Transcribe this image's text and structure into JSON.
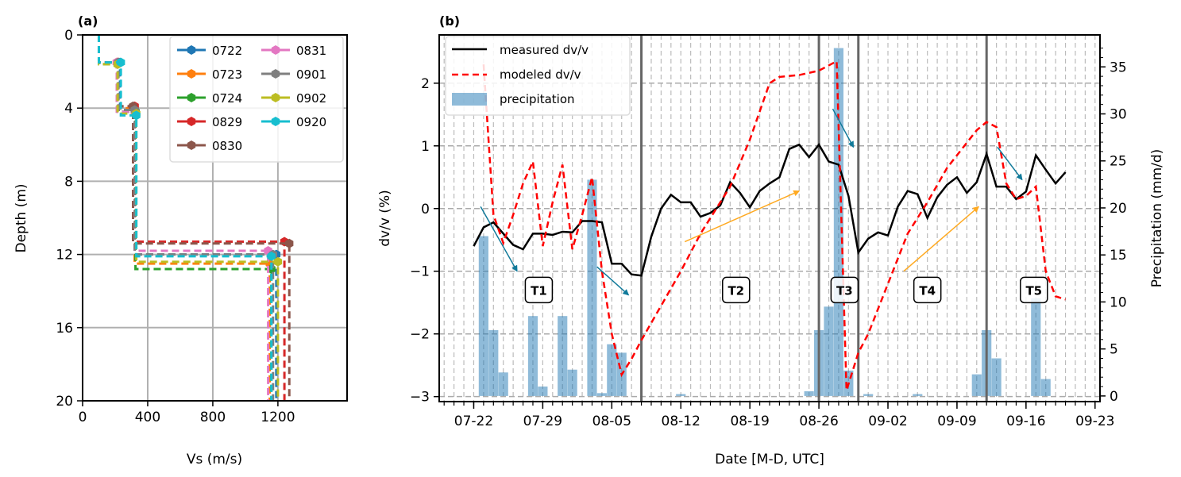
{
  "chart_data": [
    {
      "type": "line",
      "title": "(a)",
      "xlabel": "Vs (m/s)",
      "ylabel": "Depth (m)",
      "xlim": [
        0,
        1625
      ],
      "ylim": [
        20,
        0
      ],
      "xticks": [
        "0",
        "400",
        "800",
        "1200"
      ],
      "xtick_values": [
        0,
        400,
        800,
        1200
      ],
      "yticks": [
        "0",
        "4",
        "8",
        "12",
        "16",
        "20"
      ],
      "ytick_values": [
        0,
        4,
        8,
        12,
        16,
        20
      ],
      "grid": true,
      "legend_placement": "top-right",
      "series": [
        {
          "name": "0722",
          "color": "#1f77b4",
          "depths": [
            0,
            1.5,
            4.2,
            12.0
          ],
          "vs": [
            100,
            230,
            325,
            1190
          ]
        },
        {
          "name": "0723",
          "color": "#ff7f0e",
          "depths": [
            0,
            1.5,
            4.0,
            12.5
          ],
          "vs": [
            100,
            210,
            320,
            1150
          ]
        },
        {
          "name": "0724",
          "color": "#2ca02c",
          "depths": [
            0,
            1.6,
            4.2,
            12.8
          ],
          "vs": [
            100,
            215,
            325,
            1160
          ]
        },
        {
          "name": "0829",
          "color": "#d62728",
          "depths": [
            0,
            1.5,
            3.9,
            11.3
          ],
          "vs": [
            100,
            215,
            320,
            1240
          ]
        },
        {
          "name": "0830",
          "color": "#8c564b",
          "depths": [
            0,
            1.5,
            3.9,
            11.4
          ],
          "vs": [
            100,
            220,
            310,
            1270
          ]
        },
        {
          "name": "0831",
          "color": "#e377c2",
          "depths": [
            0,
            1.5,
            4.2,
            11.8
          ],
          "vs": [
            100,
            210,
            320,
            1140
          ]
        },
        {
          "name": "0901",
          "color": "#7f7f7f",
          "depths": [
            0,
            1.5,
            4.1,
            12.0
          ],
          "vs": [
            100,
            220,
            320,
            1170
          ]
        },
        {
          "name": "0902",
          "color": "#bcbd22",
          "depths": [
            0,
            1.6,
            4.3,
            12.4
          ],
          "vs": [
            100,
            215,
            330,
            1200
          ]
        },
        {
          "name": "0920",
          "color": "#17becf",
          "depths": [
            0,
            1.5,
            4.4,
            12.1
          ],
          "vs": [
            100,
            235,
            330,
            1160
          ]
        }
      ]
    },
    {
      "type": "line",
      "title": "(b)",
      "xlabel": "Date [M-D, UTC]",
      "ylabel": "dv/v (%)",
      "ylabel_right": "Precipitation (mm/d)",
      "x_unit": "days since 07-22",
      "xlim": [
        -3.5,
        63.5
      ],
      "ylim": [
        -3.08,
        2.77
      ],
      "ylim_right": [
        -0.6,
        38.4
      ],
      "xticks": [
        "07-22",
        "07-29",
        "08-05",
        "08-12",
        "08-19",
        "08-26",
        "09-02",
        "09-09",
        "09-16",
        "09-23"
      ],
      "xtick_values": [
        0,
        7,
        14,
        21,
        28,
        35,
        42,
        49,
        56,
        63
      ],
      "yticks": [
        "−3",
        "−2",
        "−1",
        "0",
        "1",
        "2"
      ],
      "ytick_values": [
        -3,
        -2,
        -1,
        0,
        1,
        2
      ],
      "yticks_right": [
        "0",
        "5",
        "10",
        "15",
        "20",
        "25",
        "30",
        "35"
      ],
      "ytick_values_right": [
        0,
        5,
        10,
        15,
        20,
        25,
        30,
        35
      ],
      "grid": true,
      "legend_placement": "top-left",
      "legend": [
        "measured dv/v",
        "modeled dv/v",
        "precipitation"
      ],
      "measured": {
        "color": "#000000",
        "x": [
          0,
          1,
          2,
          3,
          4,
          5,
          6,
          7,
          8,
          9,
          10,
          11,
          12,
          13,
          14,
          15,
          16,
          17,
          18,
          19,
          20,
          21,
          22,
          23,
          24,
          25,
          26,
          27,
          28,
          29,
          30,
          31,
          32,
          33,
          34,
          35,
          36,
          37,
          38,
          39,
          40,
          41,
          42,
          43,
          44,
          45,
          46,
          47,
          48,
          49,
          50,
          51,
          52,
          53,
          54,
          55,
          56,
          57,
          58,
          59,
          60
        ],
        "y": [
          -0.6,
          -0.3,
          -0.22,
          -0.4,
          -0.58,
          -0.65,
          -0.4,
          -0.4,
          -0.42,
          -0.37,
          -0.38,
          -0.2,
          -0.2,
          -0.22,
          -0.88,
          -0.88,
          -1.05,
          -1.07,
          -0.45,
          0,
          0.22,
          0.1,
          0.1,
          -0.13,
          -0.07,
          0.05,
          0.42,
          0.25,
          0.02,
          0.28,
          0.4,
          0.5,
          0.95,
          1.02,
          0.82,
          1.02,
          0.75,
          0.7,
          0.2,
          -0.7,
          -0.48,
          -0.38,
          -0.43,
          0.03,
          0.28,
          0.23,
          -0.15,
          0.18,
          0.38,
          0.5,
          0.25,
          0.42,
          0.87,
          0.35,
          0.35,
          0.15,
          0.27,
          0.85,
          0.62,
          0.4,
          0.58
        ]
      },
      "modeled": {
        "color": "#ff0000",
        "x": [
          1,
          2,
          3,
          4,
          5,
          6,
          7,
          8,
          9,
          10,
          11,
          12,
          13,
          14,
          15,
          16,
          17,
          21,
          23,
          26,
          28,
          30,
          31,
          33,
          35,
          36.8,
          37.8,
          39,
          40,
          42,
          44,
          46,
          48,
          50,
          51,
          52,
          53,
          54,
          55,
          56,
          57,
          58,
          59,
          60
        ],
        "y": [
          2.3,
          -0.1,
          -0.55,
          -0.1,
          0.4,
          0.75,
          -0.6,
          0.1,
          0.7,
          -0.65,
          -0.1,
          0.5,
          -1.0,
          -2.0,
          -2.65,
          -2.4,
          -2.1,
          -1.0,
          -0.4,
          0.35,
          1.1,
          2.0,
          2.1,
          2.13,
          2.2,
          2.35,
          -2.9,
          -2.3,
          -2.0,
          -1.2,
          -0.4,
          0.1,
          0.65,
          1.05,
          1.25,
          1.38,
          1.3,
          0.4,
          0.15,
          0.2,
          0.35,
          -1.0,
          -1.4,
          -1.45
        ]
      },
      "precipitation": {
        "color": "#1f77b4",
        "x": [
          1,
          2,
          3,
          6,
          7,
          9,
          10,
          12,
          13,
          14,
          15,
          21,
          34,
          35,
          36,
          37,
          38,
          40,
          45,
          51,
          52,
          53,
          57,
          58
        ],
        "values": [
          17,
          7,
          2.5,
          8.5,
          1,
          8.5,
          2.8,
          23,
          0.3,
          5.5,
          4.6,
          0.2,
          0.5,
          7,
          9.5,
          37,
          2.7,
          0.2,
          0.2,
          2.3,
          7,
          4,
          10.4,
          1.8
        ]
      },
      "event_lines": [
        17,
        35,
        39,
        52
      ],
      "period_labels": [
        {
          "text": "T1",
          "x": 6.6,
          "y": -1.3
        },
        {
          "text": "T2",
          "x": 26.6,
          "y": -1.3
        },
        {
          "text": "T3",
          "x": 37.6,
          "y": -1.3
        },
        {
          "text": "T4",
          "x": 46.0,
          "y": -1.3
        },
        {
          "text": "T5",
          "x": 56.8,
          "y": -1.3
        }
      ],
      "arrows": [
        {
          "color": "#117a9a",
          "from": [
            0.7,
            0.03
          ],
          "to": [
            4.4,
            -1.0
          ]
        },
        {
          "color": "#117a9a",
          "from": [
            12.5,
            -0.93
          ],
          "to": [
            15.7,
            -1.38
          ]
        },
        {
          "color": "#117a9a",
          "from": [
            36.4,
            1.59
          ],
          "to": [
            38.5,
            0.98
          ]
        },
        {
          "color": "#117a9a",
          "from": [
            53.1,
            0.98
          ],
          "to": [
            55.6,
            0.46
          ]
        },
        {
          "color": "#ffaa22",
          "from": [
            21.4,
            -0.53
          ],
          "to": [
            33.0,
            0.28
          ]
        },
        {
          "color": "#ffaa22",
          "from": [
            43.6,
            -1.0
          ],
          "to": [
            51.2,
            0.03
          ]
        }
      ]
    }
  ]
}
